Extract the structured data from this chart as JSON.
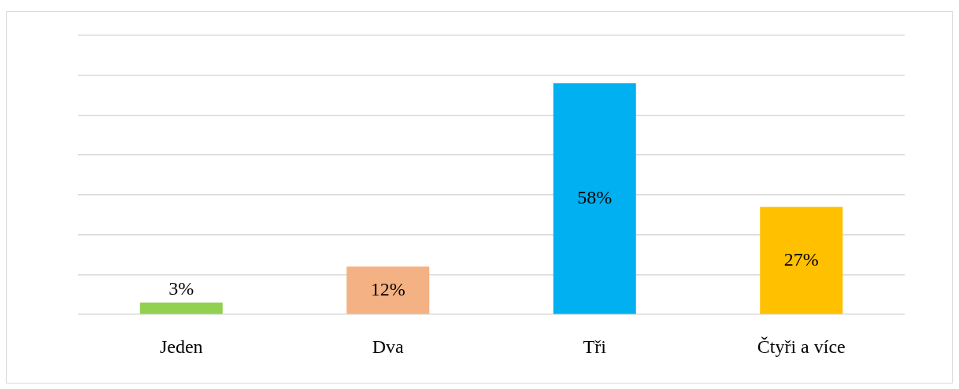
{
  "chart_data": {
    "type": "bar",
    "categories": [
      "Jeden",
      "Dva",
      "Tři",
      "Čtyři a více"
    ],
    "values": [
      3,
      12,
      58,
      27
    ],
    "colors": [
      "#92d050",
      "#f4b183",
      "#00b0f0",
      "#ffc000"
    ],
    "value_labels": [
      "3%",
      "12%",
      "58%",
      "27%"
    ],
    "ylim": [
      0,
      70
    ],
    "yticks": [
      {
        "value": 0,
        "label": null
      },
      {
        "value": 10,
        "label": null
      },
      {
        "value": 20,
        "label": null
      },
      {
        "value": 30,
        "label": null
      },
      {
        "value": 40,
        "label": null
      },
      {
        "value": 50,
        "label": null
      },
      {
        "value": 60,
        "label": null
      },
      {
        "value": 70,
        "label": null
      }
    ],
    "grid": "y",
    "tick_labels": "x"
  }
}
